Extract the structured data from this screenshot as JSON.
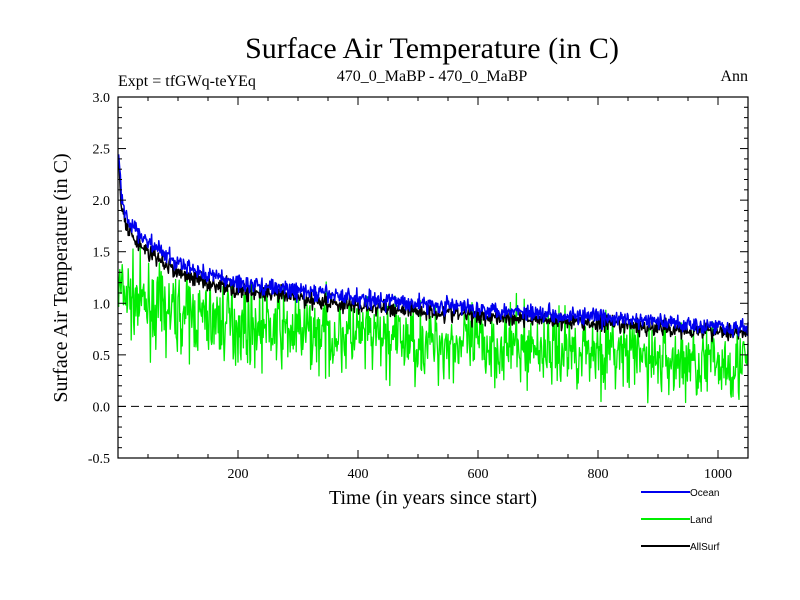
{
  "chart_data": {
    "type": "line",
    "title": "Surface Air Temperature (in C)",
    "subtitle_left": "Expt = tfGWq-teYEq",
    "subtitle_center": "470_0_MaBP - 470_0_MaBP",
    "subtitle_right": "Ann",
    "xlabel": "Time (in years since start)",
    "ylabel": "Surface Air Temperature (in C)",
    "xlim": [
      0,
      1050
    ],
    "ylim": [
      -0.5,
      3.0
    ],
    "x_ticks": [
      200,
      400,
      600,
      800,
      1000
    ],
    "x_tick_labels": [
      "200",
      "400",
      "600",
      "800",
      "1000"
    ],
    "y_ticks": [
      -0.5,
      0.0,
      0.5,
      1.0,
      1.5,
      2.0,
      2.5,
      3.0
    ],
    "y_tick_labels": [
      "-0.5",
      "0.0",
      "0.5",
      "1.0",
      "1.5",
      "2.0",
      "2.5",
      "3.0"
    ],
    "reference_line": {
      "y": 0.0,
      "style": "dashed"
    },
    "x_step": 1,
    "noise_seed": 7,
    "legend_position": "bottom-right",
    "series": [
      {
        "name": "AllSurf",
        "color": "#000000",
        "trend": [
          [
            0,
            2.5
          ],
          [
            5,
            1.95
          ],
          [
            15,
            1.72
          ],
          [
            30,
            1.6
          ],
          [
            60,
            1.45
          ],
          [
            100,
            1.3
          ],
          [
            150,
            1.2
          ],
          [
            200,
            1.13
          ],
          [
            300,
            1.05
          ],
          [
            400,
            0.97
          ],
          [
            500,
            0.93
          ],
          [
            600,
            0.88
          ],
          [
            700,
            0.85
          ],
          [
            800,
            0.8
          ],
          [
            900,
            0.76
          ],
          [
            1000,
            0.73
          ],
          [
            1050,
            0.72
          ]
        ],
        "noise": 0.06
      },
      {
        "name": "Land",
        "color": "#00ee00",
        "trend": [
          [
            0,
            1.15
          ],
          [
            20,
            1.05
          ],
          [
            60,
            0.95
          ],
          [
            100,
            0.9
          ],
          [
            200,
            0.8
          ],
          [
            300,
            0.72
          ],
          [
            400,
            0.68
          ],
          [
            500,
            0.63
          ],
          [
            600,
            0.6
          ],
          [
            700,
            0.57
          ],
          [
            800,
            0.55
          ],
          [
            900,
            0.45
          ],
          [
            1000,
            0.42
          ],
          [
            1050,
            0.42
          ]
        ],
        "noise": 0.26
      },
      {
        "name": "Ocean",
        "color": "#0000ee",
        "trend": [
          [
            0,
            2.6
          ],
          [
            5,
            2.05
          ],
          [
            15,
            1.82
          ],
          [
            30,
            1.7
          ],
          [
            60,
            1.55
          ],
          [
            100,
            1.38
          ],
          [
            150,
            1.28
          ],
          [
            200,
            1.2
          ],
          [
            300,
            1.12
          ],
          [
            400,
            1.05
          ],
          [
            500,
            1.0
          ],
          [
            600,
            0.95
          ],
          [
            700,
            0.91
          ],
          [
            800,
            0.86
          ],
          [
            900,
            0.82
          ],
          [
            1000,
            0.78
          ],
          [
            1050,
            0.76
          ]
        ],
        "noise": 0.06
      }
    ],
    "legend": [
      "Ocean",
      "Land",
      "AllSurf"
    ]
  }
}
